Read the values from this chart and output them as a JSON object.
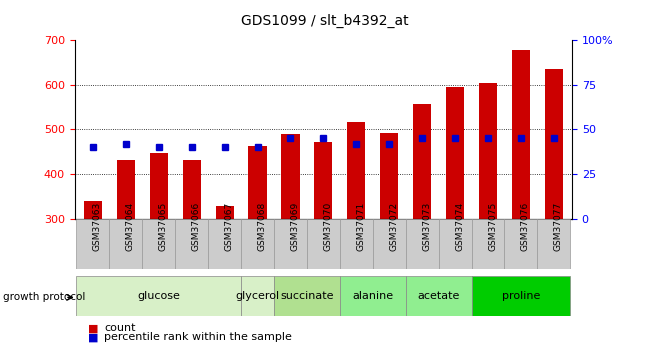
{
  "title": "GDS1099 / slt_b4392_at",
  "samples": [
    "GSM37063",
    "GSM37064",
    "GSM37065",
    "GSM37066",
    "GSM37067",
    "GSM37068",
    "GSM37069",
    "GSM37070",
    "GSM37071",
    "GSM37072",
    "GSM37073",
    "GSM37074",
    "GSM37075",
    "GSM37076",
    "GSM37077"
  ],
  "counts": [
    340,
    432,
    447,
    432,
    330,
    463,
    490,
    472,
    516,
    492,
    556,
    594,
    604,
    678,
    635
  ],
  "percentiles": [
    40,
    42,
    40,
    40,
    40,
    40,
    45,
    45,
    42,
    42,
    45,
    45,
    45,
    45,
    45
  ],
  "groups": [
    {
      "label": "glucose",
      "indices": [
        0,
        1,
        2,
        3,
        4
      ],
      "color": "#d8f0c8"
    },
    {
      "label": "glycerol",
      "indices": [
        5
      ],
      "color": "#d8f0c8"
    },
    {
      "label": "succinate",
      "indices": [
        6,
        7
      ],
      "color": "#b0e090"
    },
    {
      "label": "alanine",
      "indices": [
        8,
        9
      ],
      "color": "#90ee90"
    },
    {
      "label": "acetate",
      "indices": [
        10,
        11
      ],
      "color": "#90ee90"
    },
    {
      "label": "proline",
      "indices": [
        12,
        13,
        14
      ],
      "color": "#00cc00"
    }
  ],
  "bar_color": "#cc0000",
  "percentile_color": "#0000cc",
  "ymin": 300,
  "ymax": 700,
  "yticks": [
    300,
    400,
    500,
    600,
    700
  ],
  "y2min": 0,
  "y2max": 100,
  "y2ticks": [
    0,
    25,
    50,
    75,
    100
  ],
  "bg_color": "#ffffff"
}
